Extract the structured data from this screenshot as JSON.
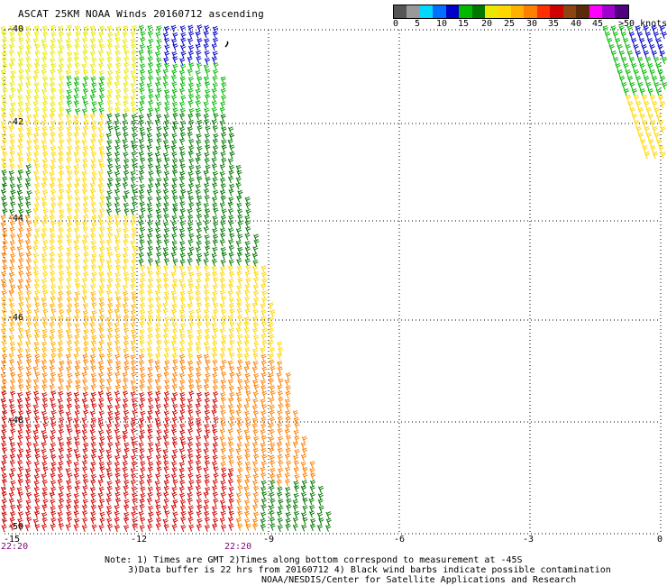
{
  "title": "ASCAT 25KM NOAA Winds 20160712 ascending",
  "legend": {
    "labels": [
      "0",
      "5",
      "10",
      "15",
      "20",
      "25",
      "30",
      "35",
      "40",
      "45",
      ">50 knots"
    ],
    "colors": [
      "#555555",
      "#999999",
      "#00d8ff",
      "#0070ff",
      "#0000c8",
      "#00b800",
      "#007800",
      "#e8e800",
      "#ffd700",
      "#ffb000",
      "#ff8000",
      "#ff3000",
      "#d00000",
      "#8b4513",
      "#5a2a0a",
      "#ff00ff",
      "#a000d0",
      "#500080"
    ]
  },
  "axes": {
    "lat_labels": [
      "-40",
      "-42",
      "-44",
      "-46",
      "-48",
      "-50"
    ],
    "lon_labels": [
      "-15",
      "-12",
      "-9",
      "-6",
      "-3",
      "0"
    ],
    "time_labels": [
      "22:20",
      "22:20"
    ]
  },
  "notes": {
    "line1": "Note: 1) Times are GMT 2)Times along bottom correspond to measurement at -45S",
    "line2": "3)Data buffer is 22 hrs from 20160712 4) Black wind barbs indicate possible contamination",
    "line3": "NOAA/NESDIS/Center for Satellite Applications and Research"
  }
}
